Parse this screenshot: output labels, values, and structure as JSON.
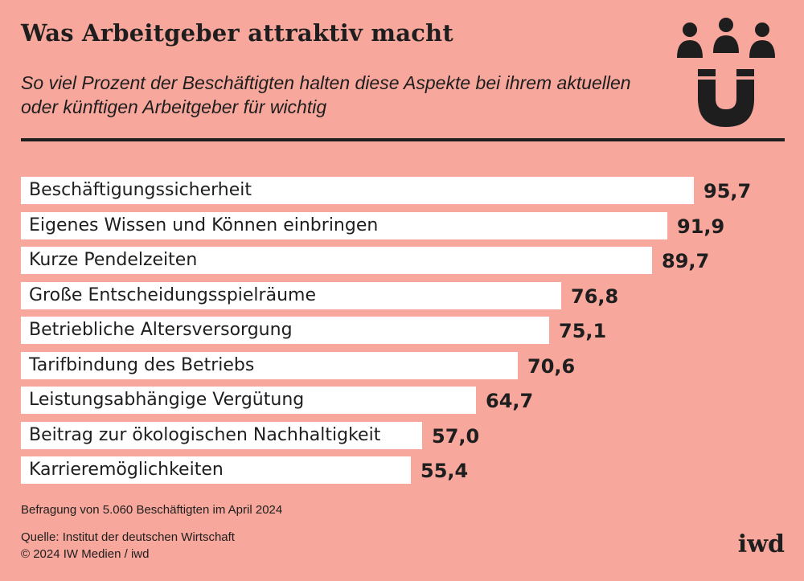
{
  "header": {
    "title": "Was Arbeitgeber attraktiv macht",
    "subtitle": "So viel Prozent der Beschäftigten halten diese Aspekte bei ihrem aktuellen oder künftigen Arbeitgeber für wichtig",
    "icon": "people-magnet-icon"
  },
  "chart_data": {
    "type": "bar",
    "orientation": "horizontal",
    "title": "Was Arbeitgeber attraktiv macht",
    "subtitle": "So viel Prozent der Beschäftigten halten diese Aspekte bei ihrem aktuellen oder künftigen Arbeitgeber für wichtig",
    "xlabel": "",
    "ylabel": "",
    "xlim": [
      0,
      100
    ],
    "grid": false,
    "bar_color": "#ffffff",
    "background_color": "#f7a79c",
    "categories": [
      "Beschäftigungssicherheit",
      "Eigenes Wissen und Können einbringen",
      "Kurze Pendelzeiten",
      "Große Entscheidungsspielräume",
      "Betriebliche Altersversorgung",
      "Tarifbindung des Betriebs",
      "Leistungsabhängige Vergütung",
      "Beitrag zur ökologischen Nachhaltigkeit",
      "Karrieremöglichkeiten"
    ],
    "values": [
      95.7,
      91.9,
      89.7,
      76.8,
      75.1,
      70.6,
      64.7,
      57.0,
      55.4
    ],
    "value_labels": [
      "95,7",
      "91,9",
      "89,7",
      "76,8",
      "75,1",
      "70,6",
      "64,7",
      "57,0",
      "55,4"
    ]
  },
  "footer": {
    "note": "Befragung von 5.060 Beschäftigten im April 2024",
    "source": "Quelle: Institut der deutschen Wirtschaft",
    "copyright": "© 2024 IW Medien / iwd",
    "brand": "iwd"
  }
}
